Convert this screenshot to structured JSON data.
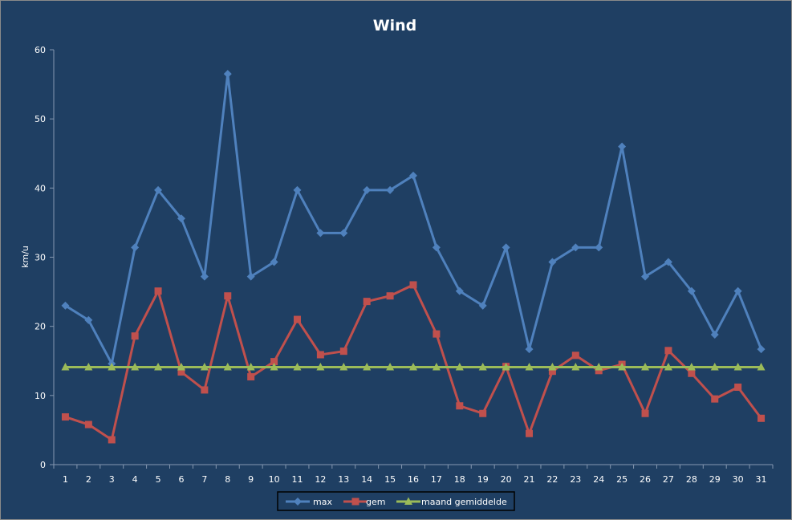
{
  "chart_data": {
    "type": "line",
    "title": "Wind",
    "xlabel": "",
    "ylabel": "km/u",
    "ylim": [
      0,
      60
    ],
    "yticks": [
      0,
      10,
      20,
      30,
      40,
      50,
      60
    ],
    "categories": [
      "1",
      "2",
      "3",
      "4",
      "5",
      "6",
      "7",
      "8",
      "9",
      "10",
      "11",
      "12",
      "13",
      "14",
      "15",
      "16",
      "17",
      "18",
      "19",
      "20",
      "21",
      "22",
      "23",
      "24",
      "25",
      "26",
      "27",
      "28",
      "29",
      "30",
      "31"
    ],
    "grid": false,
    "legend_position": "bottom",
    "series": [
      {
        "name": "max",
        "color": "#4f81bd",
        "marker": "diamond",
        "values": [
          23.0,
          20.9,
          14.6,
          31.4,
          39.7,
          35.6,
          27.2,
          56.5,
          27.2,
          29.3,
          39.7,
          33.5,
          33.5,
          39.7,
          39.7,
          41.8,
          31.4,
          25.1,
          23.0,
          31.4,
          16.7,
          29.3,
          31.4,
          31.4,
          46.0,
          27.2,
          29.3,
          25.1,
          18.8,
          25.1,
          16.7
        ]
      },
      {
        "name": "gem",
        "color": "#c0504d",
        "marker": "square",
        "values": [
          6.9,
          5.8,
          3.6,
          18.6,
          25.1,
          13.4,
          10.8,
          24.4,
          12.7,
          14.9,
          21.0,
          15.9,
          16.4,
          23.6,
          24.4,
          26.0,
          18.9,
          8.5,
          7.4,
          14.2,
          4.5,
          13.5,
          15.8,
          13.6,
          14.5,
          7.4,
          16.5,
          13.2,
          9.5,
          11.2,
          6.7
        ]
      },
      {
        "name": "maand gemiddelde",
        "color": "#9bbb59",
        "marker": "triangle",
        "values": [
          14.1,
          14.1,
          14.1,
          14.1,
          14.1,
          14.1,
          14.1,
          14.1,
          14.1,
          14.1,
          14.1,
          14.1,
          14.1,
          14.1,
          14.1,
          14.1,
          14.1,
          14.1,
          14.1,
          14.1,
          14.1,
          14.1,
          14.1,
          14.1,
          14.1,
          14.1,
          14.1,
          14.1,
          14.1,
          14.1,
          14.1
        ]
      }
    ]
  }
}
